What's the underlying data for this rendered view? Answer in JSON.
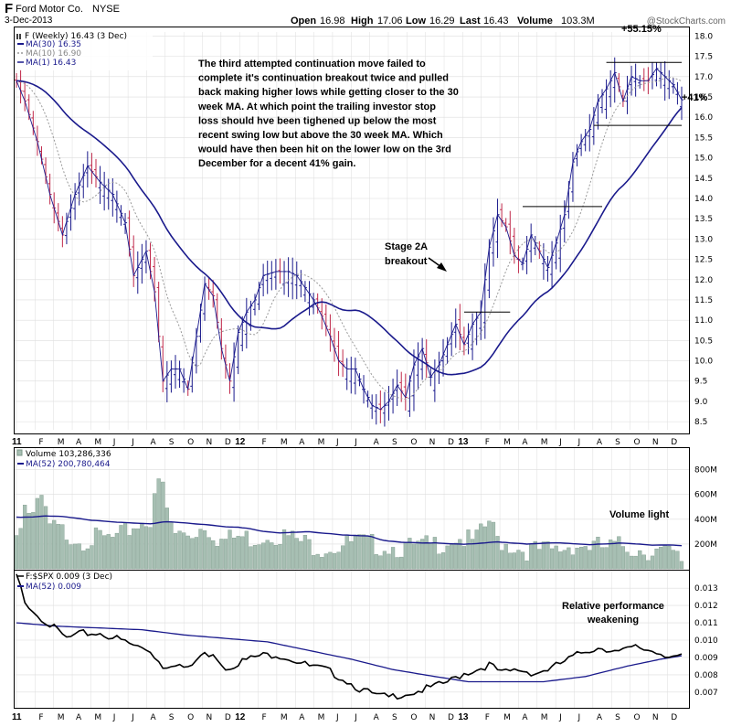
{
  "header": {
    "ticker_letter": "F",
    "company": "Ford Motor Co.",
    "exchange": "NYSE",
    "date": "3-Dec-2013",
    "open_label": "Open",
    "open_value": "16.98",
    "high_label": "High",
    "high_value": "17.06",
    "low_label": "Low",
    "low_value": "16.29",
    "last_label": "Last",
    "last_value": "16.43",
    "volume_label": "Volume",
    "volume_value": "103.3M",
    "watermark": "@StockCharts.com"
  },
  "colors": {
    "up_bar": "#1a1a8c",
    "down_bar": "#c0284a",
    "ma30": "#1a1a8c",
    "ma10": "#999999",
    "volume_bar": "#a7bfb3",
    "volume_bar_edge": "#7c998a",
    "rs_line": "#000000",
    "rs_ma": "#1a1a8c",
    "grid": "#dddddd",
    "level_line": "#000000"
  },
  "chart_data": [
    {
      "type": "line",
      "name": "price",
      "title": "F (Weekly) 16.43 (3 Dec)",
      "legend": [
        "F (Weekly) 16.43 (3 Dec)",
        "MA(30) 16.35",
        "MA(10) 16.90",
        "MA(1) 16.43"
      ],
      "ylim": [
        8.3,
        18.1
      ],
      "yticks": [
        8.5,
        9.0,
        9.5,
        10.0,
        10.5,
        11.0,
        11.5,
        12.0,
        12.5,
        13.0,
        13.5,
        14.0,
        14.5,
        15.0,
        15.5,
        16.0,
        16.5,
        17.0,
        17.5,
        18.0
      ],
      "x_time_range": [
        "2011-01",
        "2013-12"
      ],
      "close_anchors": [
        [
          0,
          16.9
        ],
        [
          2,
          16.4
        ],
        [
          5,
          15.4
        ],
        [
          8,
          14.1
        ],
        [
          11,
          13.1
        ],
        [
          14,
          14.1
        ],
        [
          17,
          14.8
        ],
        [
          20,
          14.4
        ],
        [
          23,
          14.1
        ],
        [
          26,
          13.4
        ],
        [
          28,
          12.1
        ],
        [
          31,
          12.7
        ],
        [
          33,
          11.7
        ],
        [
          35,
          9.5
        ],
        [
          37,
          9.8
        ],
        [
          39,
          9.8
        ],
        [
          41,
          9.3
        ],
        [
          43,
          10.6
        ],
        [
          45,
          11.9
        ],
        [
          47,
          11.6
        ],
        [
          49,
          10.3
        ],
        [
          51,
          9.5
        ],
        [
          53,
          10.7
        ],
        [
          55,
          11.2
        ],
        [
          57,
          11.5
        ],
        [
          59,
          12.1
        ],
        [
          62,
          12.2
        ],
        [
          65,
          12.2
        ],
        [
          67,
          12.1
        ],
        [
          69,
          11.8
        ],
        [
          71,
          11.5
        ],
        [
          73,
          11.1
        ],
        [
          75,
          10.6
        ],
        [
          77,
          10.0
        ],
        [
          79,
          9.8
        ],
        [
          81,
          9.8
        ],
        [
          83,
          9.3
        ],
        [
          85,
          8.9
        ],
        [
          87,
          8.8
        ],
        [
          89,
          9.0
        ],
        [
          91,
          9.4
        ],
        [
          93,
          9.1
        ],
        [
          95,
          9.9
        ],
        [
          97,
          10.3
        ],
        [
          99,
          9.6
        ],
        [
          101,
          9.9
        ],
        [
          103,
          10.4
        ],
        [
          105,
          10.9
        ],
        [
          107,
          10.4
        ],
        [
          109,
          10.9
        ],
        [
          111,
          11.2
        ],
        [
          113,
          12.8
        ],
        [
          115,
          13.6
        ],
        [
          117,
          13.3
        ],
        [
          119,
          12.6
        ],
        [
          121,
          12.4
        ],
        [
          123,
          13.1
        ],
        [
          125,
          12.7
        ],
        [
          127,
          12.3
        ],
        [
          129,
          12.9
        ],
        [
          131,
          13.6
        ],
        [
          133,
          14.9
        ],
        [
          135,
          15.4
        ],
        [
          137,
          15.7
        ],
        [
          139,
          16.4
        ],
        [
          141,
          16.7
        ],
        [
          143,
          17.1
        ],
        [
          145,
          16.4
        ],
        [
          147,
          17.0
        ],
        [
          149,
          16.9
        ],
        [
          151,
          16.9
        ],
        [
          153,
          17.2
        ],
        [
          155,
          17.0
        ],
        [
          157,
          16.8
        ],
        [
          159,
          16.43
        ]
      ],
      "moving_averages": [
        {
          "name": "MA(30)",
          "period": 30,
          "last": 16.35
        },
        {
          "name": "MA(10)",
          "period": 10,
          "last": 16.9
        },
        {
          "name": "MA(1)",
          "period": 1,
          "last": 16.43
        }
      ],
      "level_lines": [
        {
          "from": 141,
          "to": 159,
          "y": 17.35
        },
        {
          "from": 138,
          "to": 159,
          "y": 15.8
        },
        {
          "from": 121,
          "to": 140,
          "y": 13.8
        },
        {
          "from": 107,
          "to": 118,
          "y": 11.2
        }
      ],
      "annotations": [
        {
          "text": "The third attempted continuation move failed to complete it's continuation breakout twice and pulled back making higher lows while getting closer to the 30 week MA. At which point the trailing investor stop loss should hve been tighened up below the most recent swing low but above the 30 week MA. Which would have then been hit on the lower low on the 3rd December for a decent 41% gain."
        },
        {
          "text": "Stage 2A"
        },
        {
          "text": "breakout"
        },
        {
          "text": "+55.15%"
        },
        {
          "text": "+41%"
        }
      ]
    },
    {
      "type": "bar",
      "name": "volume",
      "title": "Volume 103,286,336",
      "legend": [
        "Volume 103,286,336",
        "MA(52) 200,780,464"
      ],
      "ylim": [
        0,
        900
      ],
      "yticks": [
        200,
        400,
        600,
        800
      ],
      "ytick_labels": [
        "200M",
        "400M",
        "600M",
        "800M"
      ],
      "unit": "millions of shares",
      "annotation": "Volume light",
      "values_anchors": [
        [
          0,
          330
        ],
        [
          2,
          560
        ],
        [
          4,
          460
        ],
        [
          6,
          600
        ],
        [
          8,
          380
        ],
        [
          12,
          330
        ],
        [
          16,
          280
        ],
        [
          20,
          290
        ],
        [
          24,
          280
        ],
        [
          28,
          390
        ],
        [
          32,
          450
        ],
        [
          33,
          680
        ],
        [
          35,
          720
        ],
        [
          36,
          490
        ],
        [
          38,
          320
        ],
        [
          42,
          330
        ],
        [
          45,
          400
        ],
        [
          49,
          270
        ],
        [
          53,
          300
        ],
        [
          57,
          290
        ],
        [
          61,
          330
        ],
        [
          65,
          300
        ],
        [
          69,
          250
        ],
        [
          73,
          220
        ],
        [
          77,
          230
        ],
        [
          81,
          260
        ],
        [
          85,
          240
        ],
        [
          89,
          230
        ],
        [
          93,
          210
        ],
        [
          97,
          220
        ],
        [
          101,
          250
        ],
        [
          105,
          300
        ],
        [
          109,
          260
        ],
        [
          111,
          320
        ],
        [
          113,
          430
        ],
        [
          115,
          280
        ],
        [
          117,
          250
        ],
        [
          121,
          200
        ],
        [
          125,
          190
        ],
        [
          129,
          190
        ],
        [
          133,
          240
        ],
        [
          137,
          230
        ],
        [
          141,
          210
        ],
        [
          145,
          230
        ],
        [
          149,
          200
        ],
        [
          153,
          190
        ],
        [
          157,
          150
        ],
        [
          159,
          103
        ]
      ],
      "ma52_last": 200.78
    },
    {
      "type": "line",
      "name": "relative_strength",
      "title": "F:$SPX 0.009 (3 Dec)",
      "legend": [
        "F:$SPX 0.009 (3 Dec)",
        "MA(52) 0.009"
      ],
      "ylim": [
        0.0062,
        0.0138
      ],
      "yticks": [
        0.007,
        0.008,
        0.009,
        0.01,
        0.011,
        0.012,
        0.013
      ],
      "ytick_labels": [
        "0.007",
        "0.008",
        "0.009",
        "0.010",
        "0.011",
        "0.012",
        "0.013"
      ],
      "annotation": [
        "Relative performance",
        "weakening"
      ],
      "values_anchors": [
        [
          0,
          0.0138
        ],
        [
          2,
          0.0124
        ],
        [
          5,
          0.0116
        ],
        [
          9,
          0.0108
        ],
        [
          12,
          0.0102
        ],
        [
          16,
          0.0105
        ],
        [
          20,
          0.0105
        ],
        [
          24,
          0.0102
        ],
        [
          28,
          0.0098
        ],
        [
          32,
          0.0095
        ],
        [
          35,
          0.0086
        ],
        [
          38,
          0.0088
        ],
        [
          41,
          0.0084
        ],
        [
          44,
          0.0092
        ],
        [
          47,
          0.0094
        ],
        [
          50,
          0.0085
        ],
        [
          54,
          0.0089
        ],
        [
          58,
          0.0092
        ],
        [
          62,
          0.0093
        ],
        [
          66,
          0.009
        ],
        [
          70,
          0.0086
        ],
        [
          74,
          0.0084
        ],
        [
          78,
          0.0079
        ],
        [
          82,
          0.0073
        ],
        [
          86,
          0.0069
        ],
        [
          89,
          0.0068
        ],
        [
          92,
          0.007
        ],
        [
          95,
          0.0071
        ],
        [
          98,
          0.0073
        ],
        [
          101,
          0.0075
        ],
        [
          104,
          0.0078
        ],
        [
          107,
          0.0082
        ],
        [
          110,
          0.0084
        ],
        [
          113,
          0.0087
        ],
        [
          116,
          0.0082
        ],
        [
          120,
          0.0084
        ],
        [
          124,
          0.0082
        ],
        [
          128,
          0.0085
        ],
        [
          132,
          0.009
        ],
        [
          136,
          0.0095
        ],
        [
          140,
          0.0097
        ],
        [
          144,
          0.0094
        ],
        [
          148,
          0.0097
        ],
        [
          152,
          0.0095
        ],
        [
          155,
          0.0093
        ],
        [
          159,
          0.0091
        ]
      ],
      "ma52_anchors": [
        [
          0,
          0.011
        ],
        [
          10,
          0.0108
        ],
        [
          20,
          0.0107
        ],
        [
          30,
          0.0106
        ],
        [
          40,
          0.0103
        ],
        [
          50,
          0.0101
        ],
        [
          60,
          0.0099
        ],
        [
          70,
          0.0094
        ],
        [
          80,
          0.0089
        ],
        [
          90,
          0.0083
        ],
        [
          100,
          0.0079
        ],
        [
          108,
          0.0076
        ],
        [
          116,
          0.0076
        ],
        [
          126,
          0.0076
        ],
        [
          136,
          0.0079
        ],
        [
          146,
          0.0085
        ],
        [
          154,
          0.0089
        ],
        [
          159,
          0.0091
        ]
      ]
    }
  ],
  "time_axis": {
    "labels": [
      "11",
      "F",
      "M",
      "A",
      "M",
      "J",
      "J",
      "A",
      "S",
      "O",
      "N",
      "D",
      "12",
      "F",
      "M",
      "A",
      "M",
      "J",
      "J",
      "A",
      "S",
      "O",
      "N",
      "D",
      "13",
      "F",
      "M",
      "A",
      "M",
      "J",
      "J",
      "A",
      "S",
      "O",
      "N",
      "D"
    ],
    "year_labels": [
      "11",
      "12",
      "13"
    ]
  }
}
